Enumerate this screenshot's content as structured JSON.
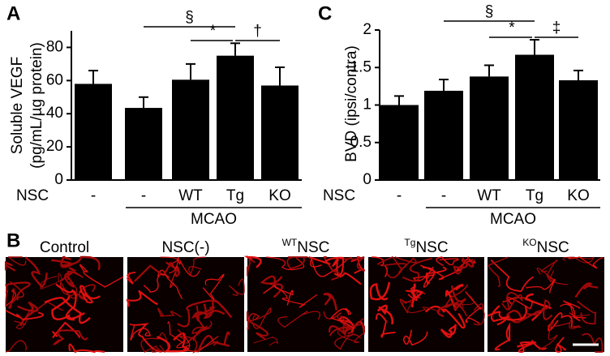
{
  "chart_data": [
    {
      "type": "bar",
      "panel": "A",
      "ylabel": [
        "Soluble VEGF",
        "(pg/mL/µg protein)"
      ],
      "row_label": "NSC",
      "group_label": "MCAO",
      "categories": [
        "-",
        "-",
        "WT",
        "Tg",
        "KO"
      ],
      "values": [
        58,
        43.5,
        60.5,
        75,
        57
      ],
      "errors": [
        8,
        6.5,
        9.5,
        7.5,
        11
      ],
      "color": "#000000",
      "ylim": [
        0,
        90
      ],
      "yticks": [
        0,
        20,
        40,
        60,
        80
      ],
      "annotations": [
        "§",
        "*",
        "†"
      ]
    },
    {
      "type": "bar",
      "panel": "C",
      "ylabel": [
        "BVD (ipsi/contra)"
      ],
      "row_label": "NSC",
      "group_label": "MCAO",
      "categories": [
        "-",
        "-",
        "WT",
        "Tg",
        "KO"
      ],
      "values": [
        1.0,
        1.19,
        1.38,
        1.67,
        1.33
      ],
      "errors": [
        0.12,
        0.15,
        0.15,
        0.2,
        0.13
      ],
      "color": "#000000",
      "ylim": [
        0,
        2
      ],
      "yticks": [
        0,
        0.5,
        1,
        1.5,
        2
      ],
      "annotations": [
        "§",
        "*",
        "‡"
      ]
    }
  ],
  "panel_b": {
    "panel": "B",
    "images": [
      {
        "text": "Control"
      },
      {
        "text": "NSC(-)"
      },
      {
        "sup": "WT",
        "text": "NSC"
      },
      {
        "sup": "Tg",
        "text": "NSC"
      },
      {
        "sup": "KO",
        "text": "NSC"
      }
    ]
  }
}
